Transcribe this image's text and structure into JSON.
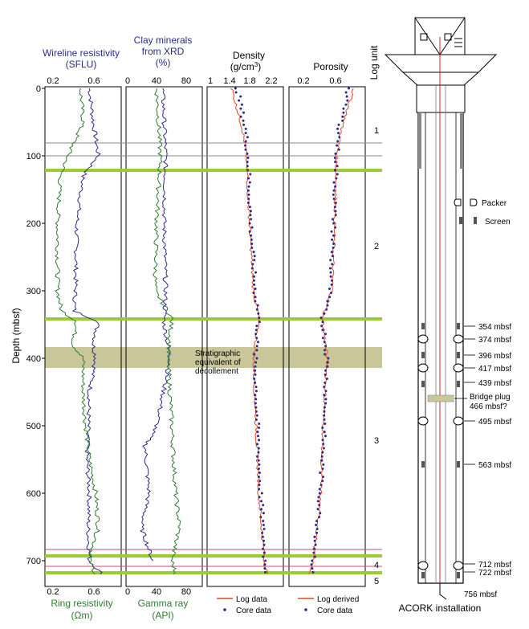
{
  "titles": {
    "wireline_line1": "Wireline resistivity",
    "wireline_line2": "(SFLU)",
    "clay_line1": "Clay minerals",
    "clay_line2": "from XRD",
    "clay_line3": "(%)",
    "density_line1": "Density",
    "density_line2": "(g/cm",
    "density_sup": "3",
    "density_close": ")",
    "porosity": "Porosity",
    "log_unit": "Log unit",
    "depth_axis": "Depth (mbsf)",
    "ring_line1": "Ring resistivity",
    "ring_line2": "(Ωm)",
    "gamma_line1": "Gamma ray",
    "gamma_line2": "(API)",
    "acork": "ACORK installation"
  },
  "ticks": {
    "resistivity": [
      "0.2",
      "0.6"
    ],
    "clay": [
      "0",
      "40",
      "80"
    ],
    "density": [
      "1",
      "1.4",
      "1.8",
      "2.2"
    ],
    "porosity": [
      "0.2",
      "0.6"
    ],
    "depth": [
      "0",
      "100",
      "200",
      "300",
      "400",
      "500",
      "600",
      "700"
    ]
  },
  "legend": {
    "density_line": "Log data",
    "density_dots": "Core data",
    "porosity_line": "Log derived",
    "porosity_dots": "Core data"
  },
  "annotation": {
    "line1": "Stratigraphic",
    "line2": "equivalent of",
    "line3": "décollement"
  },
  "units": [
    "1",
    "2",
    "3",
    "4",
    "5"
  ],
  "acork_legend": {
    "packer": "Packer",
    "screen": "Screen"
  },
  "depth_marks": [
    "354 mbsf",
    "374 mbsf",
    "396 mbsf",
    "417 mbsf",
    "439 mbsf",
    "495 mbsf",
    "563 mbsf",
    "712 mbsf",
    "722 mbsf",
    "756 mbsf"
  ],
  "bridge_plug": {
    "line1": "Bridge plug",
    "line2": "466 mbsf?"
  },
  "colors": {
    "resistivity_wireline": "#2b2a8c",
    "resistivity_ring": "#2f7d2f",
    "log_line": "#e8491d",
    "core_dots": "#2b2a8c",
    "unit_boundary": "#9acd32",
    "decollement_band": "#c9c79a"
  },
  "chart_data": {
    "type": "line",
    "depth_range": [
      0,
      740
    ],
    "unit_boundaries_mbsf": [
      122,
      343,
      697,
      722
    ],
    "decollement_interval_mbsf": [
      387,
      418
    ],
    "tracks": [
      {
        "name": "Wireline resistivity (SFLU)",
        "xlim": [
          0.2,
          0.8
        ],
        "depth": [
          0,
          50,
          100,
          130,
          200,
          300,
          330,
          345,
          380,
          400,
          450,
          500,
          550,
          600,
          650,
          700,
          720
        ],
        "values": [
          0.55,
          0.58,
          0.62,
          0.5,
          0.45,
          0.44,
          0.43,
          0.62,
          0.58,
          0.6,
          0.55,
          0.54,
          0.53,
          0.55,
          0.54,
          0.55,
          0.65
        ]
      },
      {
        "name": "Ring resistivity",
        "xlim": [
          0.2,
          0.8
        ],
        "depth": [
          0,
          50,
          100,
          130,
          200,
          300,
          330,
          345,
          380,
          400,
          450,
          500,
          550,
          600,
          650,
          700,
          720
        ],
        "values": [
          0.48,
          0.5,
          0.38,
          0.32,
          0.3,
          0.3,
          0.33,
          0.45,
          0.42,
          0.5,
          0.5,
          0.52,
          0.55,
          0.6,
          0.62,
          0.55,
          0.6
        ]
      },
      {
        "name": "Clay minerals from XRD (%)",
        "xlim": [
          0,
          100
        ],
        "depth": [
          0,
          100,
          200,
          300,
          350,
          400,
          500,
          530,
          600,
          650,
          700
        ],
        "values": [
          48,
          52,
          50,
          52,
          50,
          58,
          40,
          25,
          30,
          20,
          35
        ]
      },
      {
        "name": "Gamma ray (API)",
        "xlim": [
          0,
          100
        ],
        "depth": [
          0,
          100,
          200,
          300,
          340,
          400,
          500,
          600,
          650,
          700,
          720
        ],
        "values": [
          40,
          45,
          40,
          38,
          60,
          55,
          60,
          65,
          70,
          60,
          65
        ]
      },
      {
        "name": "Density log (g/cm3)",
        "xlim": [
          1.0,
          2.4
        ],
        "depth": [
          0,
          60,
          100,
          200,
          300,
          340,
          400,
          500,
          600,
          650,
          700,
          720
        ],
        "values": [
          1.45,
          1.65,
          1.72,
          1.78,
          1.85,
          1.95,
          1.85,
          1.9,
          1.95,
          2.0,
          2.05,
          2.1
        ]
      },
      {
        "name": "Density core (g/cm3)",
        "xlim": [
          1.0,
          2.4
        ],
        "depth": [
          0,
          60,
          100,
          200,
          300,
          340,
          400,
          500,
          600,
          650,
          700,
          720
        ],
        "values": [
          1.55,
          1.7,
          1.75,
          1.8,
          1.88,
          1.95,
          1.88,
          1.92,
          1.98,
          2.02,
          2.06,
          2.1
        ]
      },
      {
        "name": "Porosity log derived",
        "xlim": [
          0.1,
          0.9
        ],
        "depth": [
          0,
          60,
          100,
          200,
          300,
          340,
          400,
          500,
          600,
          650,
          700,
          720
        ],
        "values": [
          0.78,
          0.65,
          0.6,
          0.58,
          0.55,
          0.45,
          0.5,
          0.46,
          0.43,
          0.4,
          0.35,
          0.32
        ]
      },
      {
        "name": "Porosity core",
        "xlim": [
          0.1,
          0.9
        ],
        "depth": [
          0,
          60,
          100,
          200,
          300,
          340,
          400,
          500,
          600,
          650,
          700,
          720
        ],
        "values": [
          0.72,
          0.63,
          0.6,
          0.57,
          0.53,
          0.45,
          0.5,
          0.47,
          0.43,
          0.4,
          0.36,
          0.33
        ]
      }
    ]
  }
}
